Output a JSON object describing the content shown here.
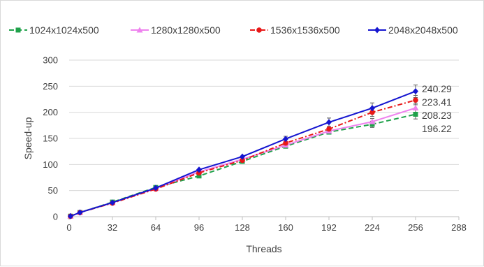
{
  "chart_data": {
    "type": "line",
    "title": "",
    "xlabel": "Threads",
    "ylabel": "Speed-up",
    "xlim": [
      0,
      288
    ],
    "ylim": [
      0,
      300
    ],
    "x_ticks": [
      0,
      32,
      64,
      96,
      128,
      160,
      192,
      224,
      256,
      288
    ],
    "y_ticks": [
      0,
      50,
      100,
      150,
      200,
      250,
      300
    ],
    "grid": true,
    "legend_position": "top",
    "x": [
      1,
      8,
      32,
      64,
      96,
      128,
      160,
      192,
      224,
      256
    ],
    "series": [
      {
        "name": "1024x1024x500",
        "color": "#1fa14a",
        "dash": "long-dash",
        "marker": "square",
        "values": [
          1,
          8,
          28,
          56,
          78,
          106,
          135,
          162,
          177,
          196.22
        ],
        "errors": [
          0,
          0,
          0,
          0,
          0,
          0,
          0,
          0,
          6,
          9
        ]
      },
      {
        "name": "1280x1280x500",
        "color": "#ee82ee",
        "dash": "solid",
        "marker": "triangle",
        "values": [
          1,
          8,
          27,
          54,
          86,
          110,
          137,
          164,
          182,
          208.23
        ],
        "errors": [
          0,
          0,
          0,
          0,
          0,
          0,
          0,
          0,
          6,
          9
        ]
      },
      {
        "name": "1536x1536x500",
        "color": "#e81818",
        "dash": "dash-dot",
        "marker": "circle",
        "values": [
          1,
          8,
          26,
          53,
          84,
          108,
          141,
          168,
          200,
          223.41
        ],
        "errors": [
          0,
          0,
          0,
          0,
          0,
          0,
          0,
          0,
          8,
          9
        ]
      },
      {
        "name": "2048x2048x500",
        "color": "#1515d0",
        "dash": "solid",
        "marker": "diamond",
        "values": [
          1,
          8,
          27,
          55,
          90,
          115,
          149,
          181,
          208,
          240.29
        ],
        "errors": [
          0,
          0,
          0,
          0,
          0,
          0,
          5,
          8,
          10,
          12
        ]
      }
    ],
    "end_labels": [
      "240.29",
      "223.41",
      "208.23",
      "196.22"
    ]
  }
}
